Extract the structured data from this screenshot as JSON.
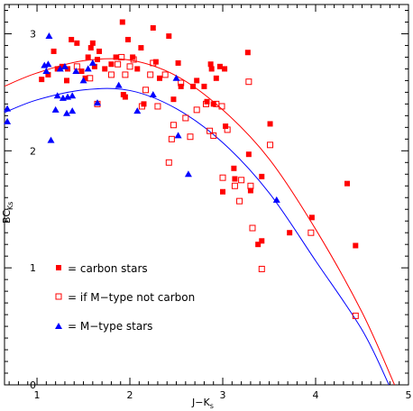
{
  "chart_data": {
    "type": "scatter",
    "xlabel": "J−K",
    "xlabel_sub": "s",
    "ylabel": "BC",
    "ylabel_sub": "Ks",
    "xlim": [
      0.65,
      5.0
    ],
    "ylim": [
      0,
      3.25
    ],
    "xticks": [
      1,
      2,
      3,
      4,
      5
    ],
    "yticks": [
      0,
      1,
      2,
      3
    ],
    "legend": [
      "= carbon stars",
      "= if M−type not carbon",
      "= M−type stars"
    ],
    "colors": {
      "red": "#ff0000",
      "blue": "#0000ff"
    },
    "series": [
      {
        "name": "carbon stars",
        "marker": "filled-square",
        "color": "#ff0000",
        "points": [
          [
            1.05,
            2.61
          ],
          [
            1.12,
            2.65
          ],
          [
            1.18,
            2.85
          ],
          [
            1.22,
            2.7
          ],
          [
            1.27,
            2.72
          ],
          [
            1.32,
            2.6
          ],
          [
            1.33,
            2.7
          ],
          [
            1.37,
            2.95
          ],
          [
            1.43,
            2.92
          ],
          [
            1.48,
            2.68
          ],
          [
            1.52,
            2.62
          ],
          [
            1.55,
            2.8
          ],
          [
            1.58,
            2.88
          ],
          [
            1.6,
            2.92
          ],
          [
            1.62,
            2.72
          ],
          [
            1.65,
            2.78
          ],
          [
            1.67,
            2.85
          ],
          [
            1.73,
            2.7
          ],
          [
            1.8,
            2.74
          ],
          [
            1.85,
            2.8
          ],
          [
            1.92,
            3.1
          ],
          [
            1.93,
            2.48
          ],
          [
            1.95,
            2.46
          ],
          [
            1.98,
            2.95
          ],
          [
            2.03,
            2.8
          ],
          [
            2.08,
            2.7
          ],
          [
            2.12,
            2.88
          ],
          [
            2.15,
            2.4
          ],
          [
            2.25,
            3.05
          ],
          [
            2.28,
            2.76
          ],
          [
            2.32,
            2.62
          ],
          [
            2.42,
            2.98
          ],
          [
            2.47,
            2.44
          ],
          [
            2.52,
            2.75
          ],
          [
            2.55,
            2.55
          ],
          [
            2.68,
            2.55
          ],
          [
            2.72,
            2.6
          ],
          [
            2.8,
            2.55
          ],
          [
            2.83,
            2.42
          ],
          [
            2.87,
            2.74
          ],
          [
            2.88,
            2.7
          ],
          [
            2.9,
            2.4
          ],
          [
            2.93,
            2.62
          ],
          [
            2.97,
            2.72
          ],
          [
            3.02,
            2.7
          ],
          [
            3.03,
            2.21
          ],
          [
            3.0,
            1.65
          ],
          [
            3.12,
            1.85
          ],
          [
            3.13,
            1.76
          ],
          [
            3.27,
            2.84
          ],
          [
            3.28,
            1.97
          ],
          [
            3.3,
            1.66
          ],
          [
            3.42,
            1.78
          ],
          [
            3.38,
            1.2
          ],
          [
            3.42,
            1.23
          ],
          [
            3.51,
            2.23
          ],
          [
            3.72,
            1.3
          ],
          [
            3.96,
            1.43
          ],
          [
            4.34,
            1.72
          ],
          [
            4.43,
            1.19
          ]
        ]
      },
      {
        "name": "if M-type not carbon",
        "marker": "open-square",
        "color": "#ff0000",
        "points": [
          [
            1.43,
            2.72
          ],
          [
            1.57,
            2.62
          ],
          [
            1.65,
            2.4
          ],
          [
            1.8,
            2.65
          ],
          [
            1.87,
            2.74
          ],
          [
            1.91,
            2.8
          ],
          [
            1.95,
            2.65
          ],
          [
            2.0,
            2.72
          ],
          [
            2.04,
            2.78
          ],
          [
            2.13,
            2.38
          ],
          [
            2.17,
            2.52
          ],
          [
            2.22,
            2.65
          ],
          [
            2.25,
            2.75
          ],
          [
            2.3,
            2.38
          ],
          [
            2.38,
            2.65
          ],
          [
            2.42,
            1.9
          ],
          [
            2.45,
            2.1
          ],
          [
            2.47,
            2.22
          ],
          [
            2.55,
            2.58
          ],
          [
            2.6,
            2.28
          ],
          [
            2.65,
            2.12
          ],
          [
            2.72,
            2.35
          ],
          [
            2.82,
            2.4
          ],
          [
            2.86,
            2.17
          ],
          [
            2.9,
            2.13
          ],
          [
            2.93,
            2.4
          ],
          [
            2.99,
            2.38
          ],
          [
            3.0,
            1.77
          ],
          [
            3.05,
            2.18
          ],
          [
            3.13,
            1.7
          ],
          [
            3.18,
            1.57
          ],
          [
            3.2,
            1.75
          ],
          [
            3.28,
            2.59
          ],
          [
            3.3,
            1.7
          ],
          [
            3.32,
            1.34
          ],
          [
            3.42,
            0.99
          ],
          [
            3.51,
            2.05
          ],
          [
            3.95,
            1.3
          ],
          [
            4.43,
            0.59
          ]
        ]
      },
      {
        "name": "M-type stars",
        "marker": "filled-triangle",
        "color": "#0000ff",
        "points": [
          [
            0.68,
            2.36
          ],
          [
            0.68,
            2.25
          ],
          [
            1.08,
            2.73
          ],
          [
            1.1,
            2.68
          ],
          [
            1.12,
            2.74
          ],
          [
            1.13,
            2.98
          ],
          [
            1.15,
            2.09
          ],
          [
            1.2,
            2.35
          ],
          [
            1.22,
            2.47
          ],
          [
            1.25,
            2.7
          ],
          [
            1.28,
            2.45
          ],
          [
            1.3,
            2.72
          ],
          [
            1.32,
            2.32
          ],
          [
            1.33,
            2.46
          ],
          [
            1.38,
            2.47
          ],
          [
            1.38,
            2.34
          ],
          [
            1.42,
            2.68
          ],
          [
            1.5,
            2.6
          ],
          [
            1.55,
            2.7
          ],
          [
            1.6,
            2.75
          ],
          [
            1.65,
            2.41
          ],
          [
            1.88,
            2.56
          ],
          [
            2.08,
            2.34
          ],
          [
            2.25,
            2.48
          ],
          [
            2.5,
            2.62
          ],
          [
            2.52,
            2.13
          ],
          [
            2.63,
            1.8
          ],
          [
            3.58,
            1.58
          ]
        ]
      }
    ],
    "fits": [
      {
        "color": "#ff0000",
        "points": [
          [
            0.65,
            2.552
          ],
          [
            1.0,
            2.665
          ],
          [
            1.5,
            2.77
          ],
          [
            2.0,
            2.775
          ],
          [
            2.5,
            2.64
          ],
          [
            3.0,
            2.35
          ],
          [
            3.5,
            1.93
          ],
          [
            4.0,
            1.33
          ],
          [
            4.5,
            0.62
          ],
          [
            4.85,
            0.0
          ]
        ]
      },
      {
        "color": "#0000ff",
        "points": [
          [
            0.65,
            2.327
          ],
          [
            1.0,
            2.435
          ],
          [
            1.5,
            2.52
          ],
          [
            2.0,
            2.515
          ],
          [
            2.5,
            2.36
          ],
          [
            3.0,
            2.07
          ],
          [
            3.5,
            1.64
          ],
          [
            4.0,
            1.06
          ],
          [
            4.5,
            0.47
          ],
          [
            4.79,
            0.0
          ]
        ]
      }
    ]
  }
}
